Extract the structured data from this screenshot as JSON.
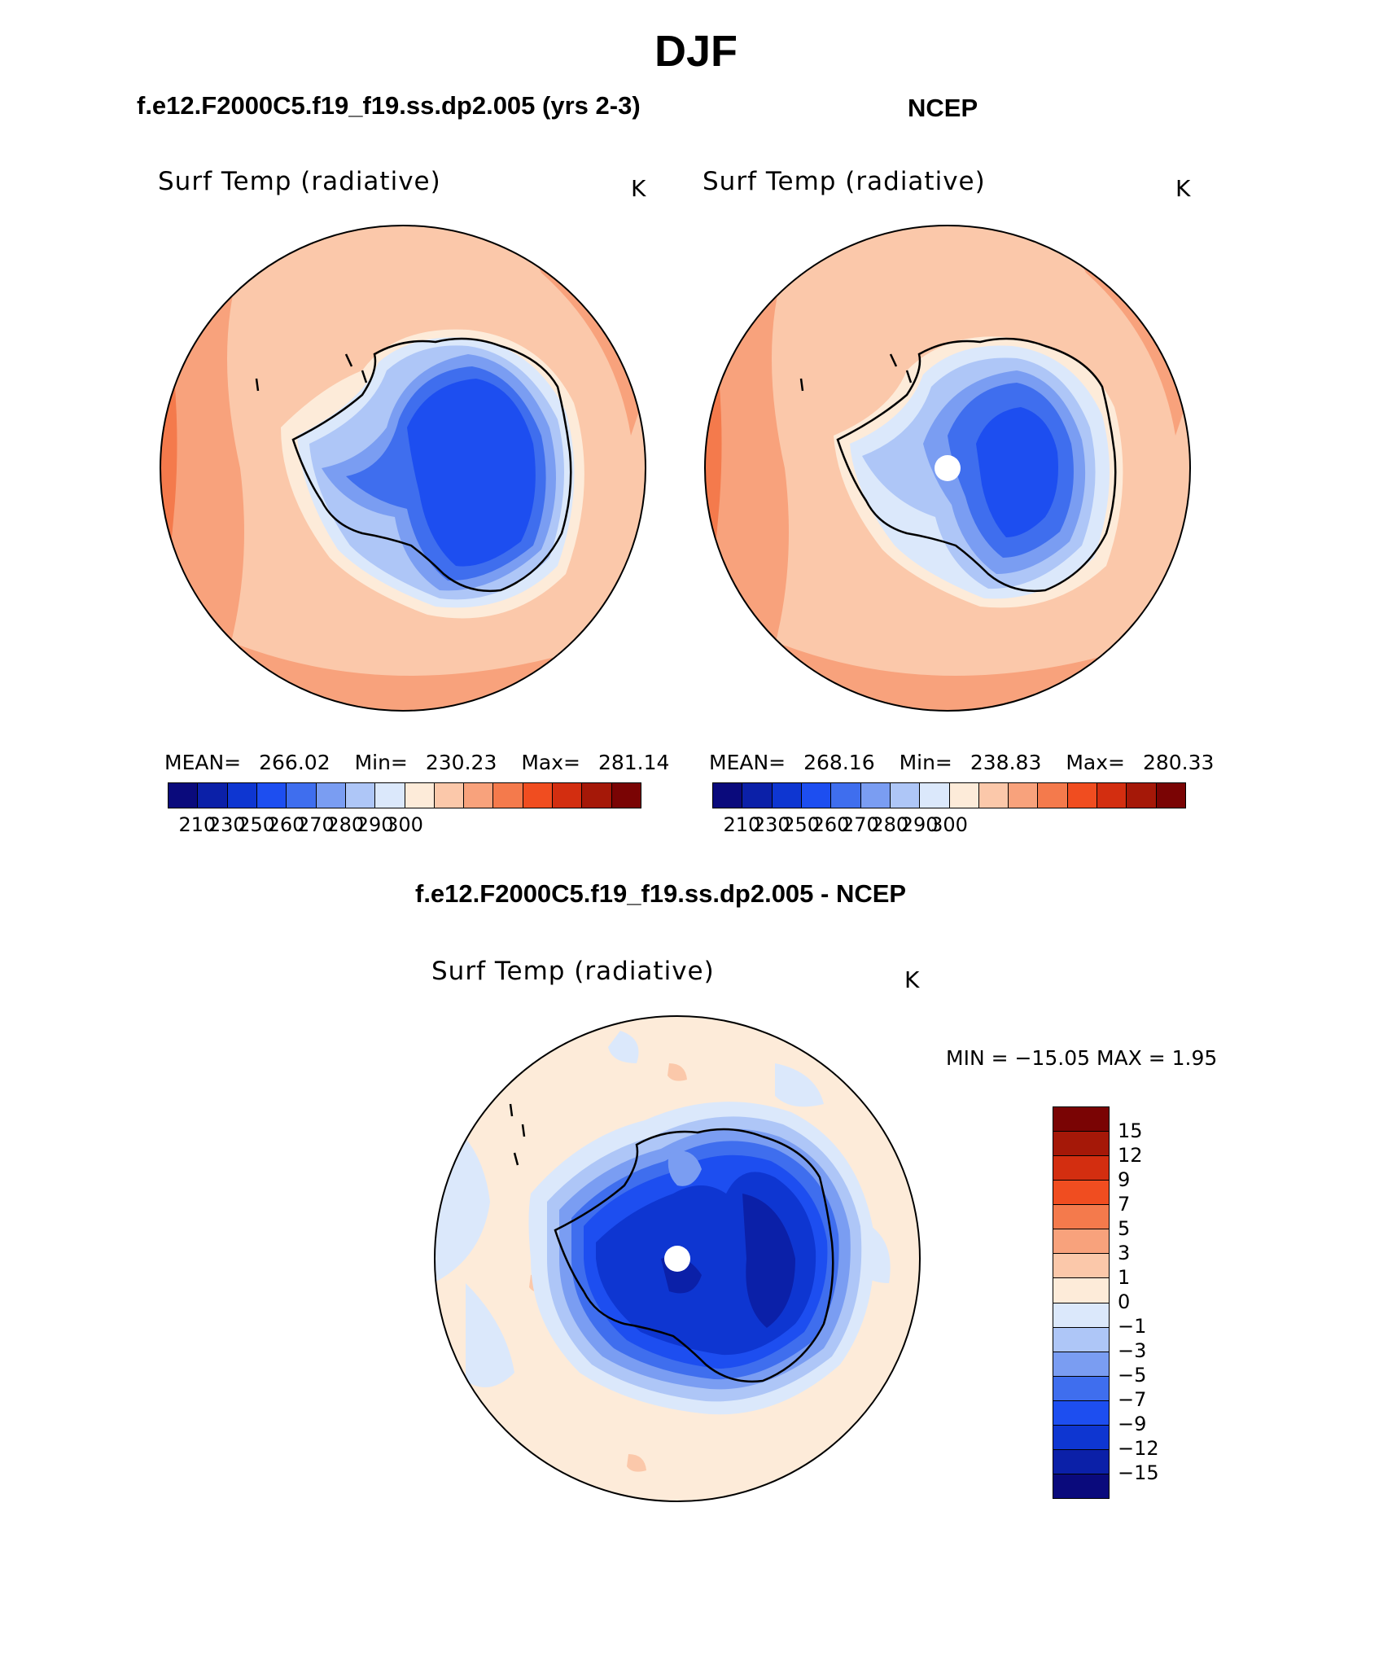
{
  "figure": {
    "season": "DJF",
    "case_title": "f.e12.F2000C5.f19_f19.ss.dp2.005 (yrs 2-3)",
    "obs_title": "NCEP",
    "diff_title": "f.e12.F2000C5.f19_f19.ss.dp2.005 - NCEP"
  },
  "panels": [
    {
      "title": "Surf Temp (radiative)",
      "units": "K",
      "mean_label": "MEAN=",
      "mean": "266.02",
      "min_label": "Min=",
      "min": "230.23",
      "max_label": "Max=",
      "max": "281.14"
    },
    {
      "title": "Surf Temp (radiative)",
      "units": "K",
      "mean_label": "MEAN=",
      "mean": "268.16",
      "min_label": "Min=",
      "min": "238.83",
      "max_label": "Max=",
      "max": "280.33"
    },
    {
      "title": "Surf Temp (radiative)",
      "units": "K",
      "minmax": "MIN = −15.05 MAX =    1.95"
    }
  ],
  "chart_data": [
    {
      "type": "heatmap",
      "title": "Surf Temp (radiative)",
      "units": "K",
      "projection": "south polar stereographic",
      "stats": {
        "mean": 266.02,
        "min": 230.23,
        "max": 281.14
      },
      "colorbar": {
        "orientation": "horizontal",
        "tick_labels": [
          "210",
          "230",
          "250",
          "260",
          "270",
          "280",
          "290",
          "300"
        ],
        "colors": [
          "#0a0a7c",
          "#0b20a8",
          "#0e36d1",
          "#1d4ef0",
          "#3f6eee",
          "#7a9df2",
          "#aec6f7",
          "#dbe8fb",
          "#fdebd9",
          "#fbc8aa",
          "#f8a27c",
          "#f47a4c",
          "#f04d20",
          "#d32e10",
          "#a51808",
          "#7a0404"
        ]
      }
    },
    {
      "type": "heatmap",
      "title": "Surf Temp (radiative)",
      "units": "K",
      "projection": "south polar stereographic",
      "stats": {
        "mean": 268.16,
        "min": 238.83,
        "max": 280.33
      },
      "colorbar": {
        "orientation": "horizontal",
        "tick_labels": [
          "210",
          "230",
          "250",
          "260",
          "270",
          "280",
          "290",
          "300"
        ],
        "colors": [
          "#0a0a7c",
          "#0b20a8",
          "#0e36d1",
          "#1d4ef0",
          "#3f6eee",
          "#7a9df2",
          "#aec6f7",
          "#dbe8fb",
          "#fdebd9",
          "#fbc8aa",
          "#f8a27c",
          "#f47a4c",
          "#f04d20",
          "#d32e10",
          "#a51808",
          "#7a0404"
        ]
      }
    },
    {
      "type": "heatmap",
      "title": "Surf Temp (radiative)",
      "units": "K",
      "projection": "south polar stereographic",
      "stats": {
        "min": -15.05,
        "max": 1.95
      },
      "colorbar": {
        "orientation": "vertical",
        "tick_labels": [
          "15",
          "12",
          "9",
          "7",
          "5",
          "3",
          "1",
          "0",
          "−1",
          "−3",
          "−5",
          "−7",
          "−9",
          "−12",
          "−15"
        ],
        "colors": [
          "#7a0404",
          "#a51808",
          "#d32e10",
          "#f04d20",
          "#f47a4c",
          "#f8a27c",
          "#fbc8aa",
          "#fdebd9",
          "#dbe8fb",
          "#aec6f7",
          "#7a9df2",
          "#3f6eee",
          "#1d4ef0",
          "#0e36d1",
          "#0b20a8",
          "#0a0a7c"
        ]
      }
    }
  ]
}
